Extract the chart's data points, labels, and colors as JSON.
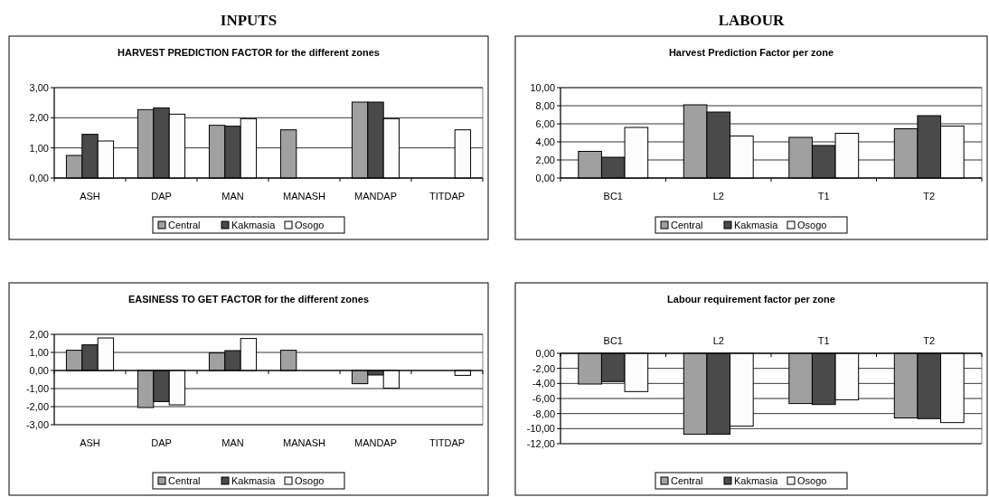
{
  "chart_data": [
    {
      "type": "bar",
      "title": "HARVEST PREDICTION FACTOR for the different zones",
      "annotations": [
        "INPUTS"
      ],
      "categories": [
        "ASH",
        "DAP",
        "MAN",
        "MANASH",
        "MANDAP",
        "TITDAP"
      ],
      "series": [
        {
          "name": "Central",
          "color": "#a0a0a0",
          "values": [
            0.75,
            2.27,
            1.75,
            1.6,
            2.52,
            null
          ]
        },
        {
          "name": "Kakmasia",
          "color": "#4a4a4a",
          "values": [
            1.45,
            2.33,
            1.72,
            null,
            2.52,
            null
          ]
        },
        {
          "name": "Osogo",
          "color": "#fcfcfc",
          "values": [
            1.23,
            2.12,
            1.97,
            null,
            1.97,
            1.6
          ]
        }
      ],
      "ylim": [
        0,
        3
      ],
      "yticks": [
        {
          "value": 0,
          "label": "0,00"
        },
        {
          "value": 1,
          "label": "1,00"
        },
        {
          "value": 2,
          "label": "2,00"
        },
        {
          "value": 3,
          "label": "3,00"
        }
      ],
      "grid": "y",
      "legend": "bottom"
    },
    {
      "type": "bar",
      "title": "Harvest Prediction Factor per zone",
      "annotations": [
        "LABOUR"
      ],
      "categories": [
        "BC1",
        "L2",
        "T1",
        "T2"
      ],
      "series": [
        {
          "name": "Central",
          "color": "#a0a0a0",
          "values": [
            2.95,
            8.1,
            4.5,
            5.45
          ]
        },
        {
          "name": "Kakmasia",
          "color": "#4a4a4a",
          "values": [
            2.3,
            7.3,
            3.6,
            6.9
          ]
        },
        {
          "name": "Osogo",
          "color": "#fcfcfc",
          "values": [
            5.6,
            4.65,
            4.95,
            5.75
          ]
        }
      ],
      "ylim": [
        0,
        10
      ],
      "yticks": [
        {
          "value": 0,
          "label": "0,00"
        },
        {
          "value": 2,
          "label": "2,00"
        },
        {
          "value": 4,
          "label": "4,00"
        },
        {
          "value": 6,
          "label": "6,00"
        },
        {
          "value": 8,
          "label": "8,00"
        },
        {
          "value": 10,
          "label": "10,00"
        }
      ],
      "grid": "y",
      "legend": "bottom"
    },
    {
      "type": "bar",
      "title": "EASINESS TO GET FACTOR for the different zones",
      "categories": [
        "ASH",
        "DAP",
        "MAN",
        "MANASH",
        "MANDAP",
        "TITDAP"
      ],
      "series": [
        {
          "name": "Central",
          "color": "#a0a0a0",
          "values": [
            1.12,
            -2.05,
            0.97,
            1.12,
            -0.73,
            null
          ]
        },
        {
          "name": "Kakmasia",
          "color": "#4a4a4a",
          "values": [
            1.42,
            -1.72,
            1.1,
            null,
            -0.25,
            null
          ]
        },
        {
          "name": "Osogo",
          "color": "#fcfcfc",
          "values": [
            1.8,
            -1.9,
            1.77,
            null,
            -0.98,
            -0.27
          ]
        }
      ],
      "ylim": [
        -3,
        2
      ],
      "yticks": [
        {
          "value": -3,
          "label": "-3,00"
        },
        {
          "value": -2,
          "label": "-2,00"
        },
        {
          "value": -1,
          "label": "-1,00"
        },
        {
          "value": 0,
          "label": "0,00"
        },
        {
          "value": 1,
          "label": "1,00"
        },
        {
          "value": 2,
          "label": "2,00"
        }
      ],
      "grid": "y",
      "legend": "bottom"
    },
    {
      "type": "bar",
      "title": "Labour requirement factor per zone",
      "categories": [
        "BC1",
        "L2",
        "T1",
        "T2"
      ],
      "series": [
        {
          "name": "Central",
          "color": "#a0a0a0",
          "values": [
            -4.08,
            -10.75,
            -6.67,
            -8.58
          ]
        },
        {
          "name": "Kakmasia",
          "color": "#4a4a4a",
          "values": [
            -3.75,
            -10.75,
            -6.8,
            -8.67
          ]
        },
        {
          "name": "Osogo",
          "color": "#fcfcfc",
          "values": [
            -5.08,
            -9.67,
            -6.17,
            -9.2
          ]
        }
      ],
      "ylim": [
        -12,
        0
      ],
      "yticks": [
        {
          "value": -12,
          "label": "-12,00"
        },
        {
          "value": -10,
          "label": "-10,00"
        },
        {
          "value": -8,
          "label": "-8,00"
        },
        {
          "value": -6,
          "label": "-6,00"
        },
        {
          "value": -4,
          "label": "-4,00"
        },
        {
          "value": -2,
          "label": "-2,00"
        },
        {
          "value": 0,
          "label": "0,00"
        }
      ],
      "grid": "y",
      "legend": "bottom"
    }
  ]
}
